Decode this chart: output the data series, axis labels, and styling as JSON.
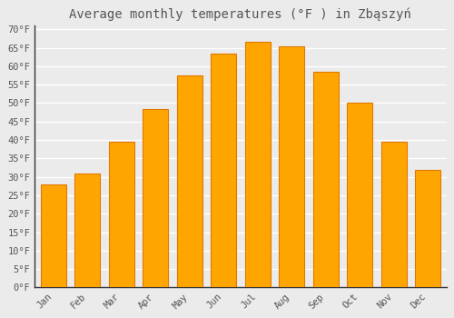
{
  "title": "Average monthly temperatures (°F ) in Zbąszyń",
  "months": [
    "Jan",
    "Feb",
    "Mar",
    "Apr",
    "May",
    "Jun",
    "Jul",
    "Aug",
    "Sep",
    "Oct",
    "Nov",
    "Dec"
  ],
  "values": [
    28.0,
    31.0,
    39.5,
    48.5,
    57.5,
    63.5,
    66.5,
    65.5,
    58.5,
    50.0,
    39.5,
    32.0
  ],
  "bar_color": "#FFA500",
  "bar_edge_color": "#E07800",
  "background_color": "#EBEBEB",
  "plot_bg_color": "#EBEBEB",
  "grid_color": "#FFFFFF",
  "text_color": "#555555",
  "ytick_min": 0,
  "ytick_max": 70,
  "ytick_step": 5,
  "title_fontsize": 10,
  "tick_fontsize": 7.5
}
